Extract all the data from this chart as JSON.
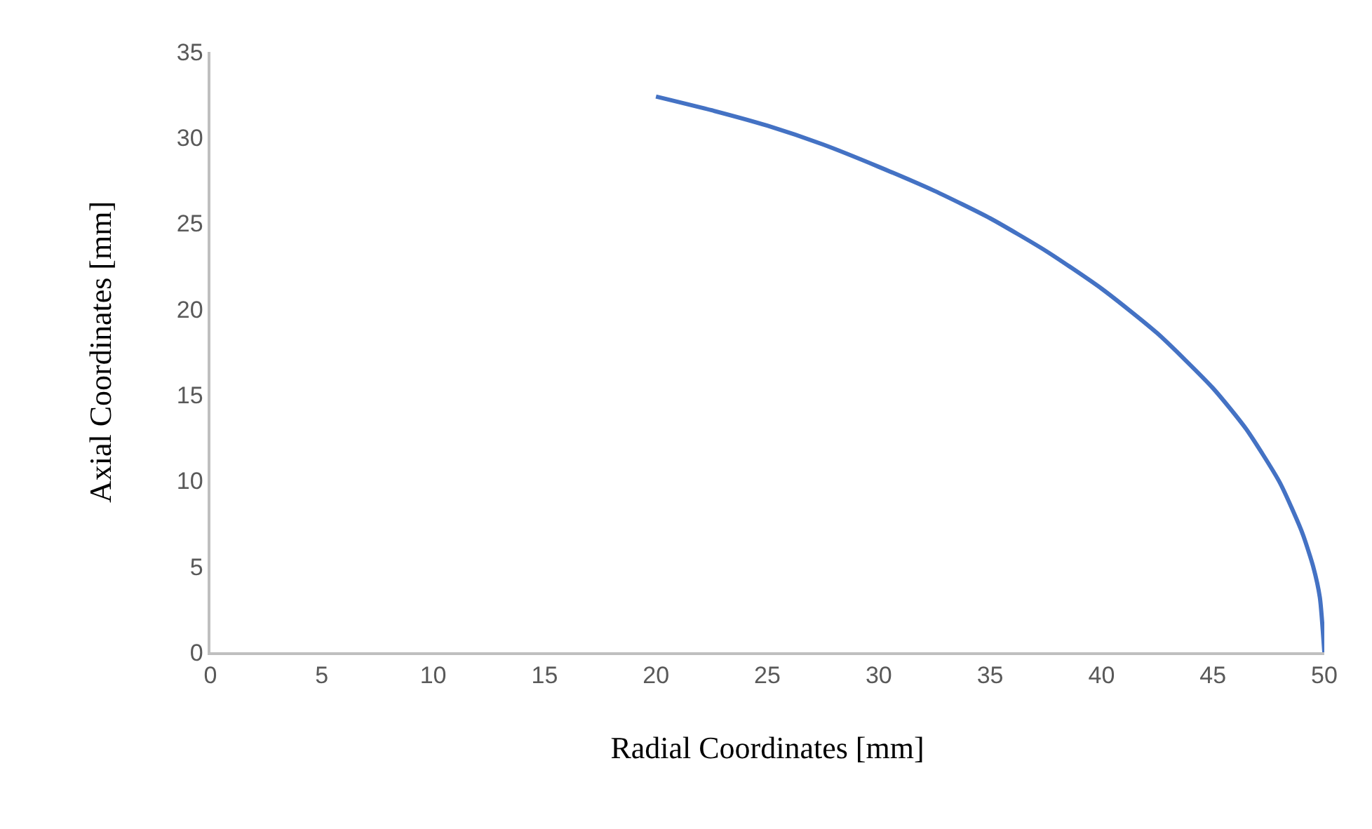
{
  "chart_data": {
    "type": "line",
    "xlabel": "Radial Coordinates [mm]",
    "ylabel": "Axial Coordinates [mm]",
    "x": [
      20,
      22.5,
      25,
      27.5,
      30,
      32.5,
      35,
      37.5,
      40,
      42.5,
      45,
      46.5,
      48,
      49,
      49.5,
      49.8,
      50
    ],
    "series": [
      {
        "color": "#4472c4",
        "values": [
          32.4,
          31.6,
          30.7,
          29.6,
          28.3,
          26.9,
          25.3,
          23.4,
          21.2,
          18.6,
          15.4,
          13.0,
          9.9,
          7.0,
          5.0,
          3.2,
          0
        ]
      }
    ],
    "xlim": [
      0,
      50
    ],
    "xticks": [
      0,
      5,
      10,
      15,
      20,
      25,
      30,
      35,
      40,
      45,
      50
    ],
    "ylim": [
      0,
      35
    ],
    "yticks": [
      0,
      5,
      10,
      15,
      20,
      25,
      30,
      35
    ],
    "grid": false,
    "marker": "none",
    "line_style": "solid"
  }
}
